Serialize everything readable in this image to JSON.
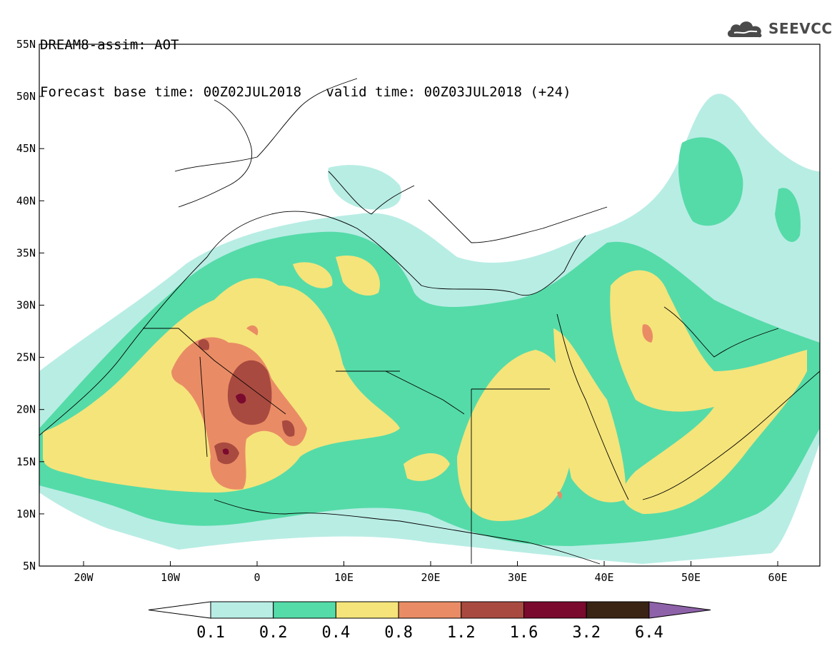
{
  "header": {
    "title_line1": "DREAM8-assim: AOT",
    "base_time": "Forecast base time: 00Z02JUL2018",
    "valid_time": "valid time: 00Z03JUL2018 (+24)"
  },
  "logo": {
    "text": "SEEVCCC",
    "icon": "cloud-logo-icon"
  },
  "map": {
    "lat_labels": [
      "55N",
      "50N",
      "45N",
      "40N",
      "35N",
      "30N",
      "25N",
      "20N",
      "15N",
      "10N",
      "5N"
    ],
    "lon_labels": [
      "20W",
      "10W",
      "0",
      "10E",
      "20E",
      "30E",
      "40E",
      "50E",
      "60E"
    ]
  },
  "colorbar": {
    "colors": [
      "#b8ede4",
      "#55dba8",
      "#f5e47a",
      "#e98c65",
      "#a94a40",
      "#7a0a2e",
      "#3a2414",
      "#8e62a8"
    ],
    "labels": [
      "0.1",
      "0.2",
      "0.4",
      "0.8",
      "1.2",
      "1.6",
      "3.2",
      "6.4"
    ]
  }
}
